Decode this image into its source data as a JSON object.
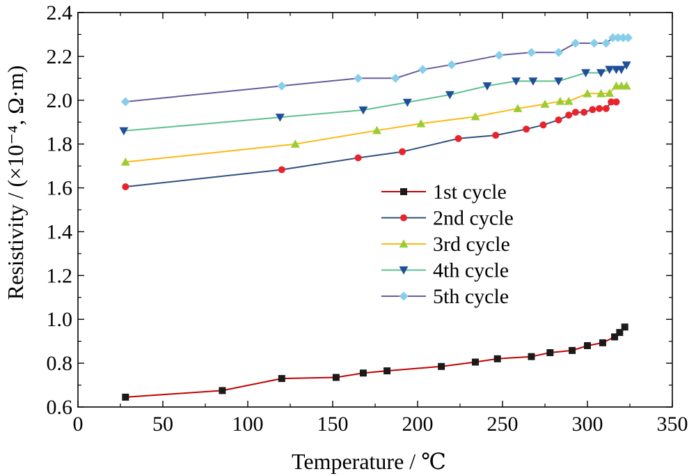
{
  "chart_data": {
    "type": "line",
    "xlabel": "Temperature / ℃",
    "ylabel": "Resistivity / (×10⁻⁴, Ω·m)",
    "xlim": [
      0,
      350
    ],
    "ylim": [
      0.6,
      2.4
    ],
    "xticks": [
      "0",
      "50",
      "100",
      "150",
      "200",
      "250",
      "300",
      "350"
    ],
    "yticks": [
      "0.6",
      "0.8",
      "1.0",
      "1.2",
      "1.4",
      "1.6",
      "1.8",
      "2.0",
      "2.2",
      "2.4"
    ],
    "grid": false,
    "legend_position": "center-right",
    "series": [
      {
        "name": "1st cycle",
        "line_color": "#C00000",
        "marker_color": "#1A1A1A",
        "marker": "square",
        "x": [
          28,
          85,
          120,
          152,
          168,
          182,
          214,
          234,
          247,
          267,
          278,
          291,
          300,
          309,
          316,
          319,
          322
        ],
        "y": [
          0.645,
          0.675,
          0.73,
          0.735,
          0.755,
          0.765,
          0.785,
          0.805,
          0.82,
          0.83,
          0.848,
          0.858,
          0.88,
          0.893,
          0.92,
          0.94,
          0.965
        ]
      },
      {
        "name": "2nd cycle",
        "line_color": "#2F4F7F",
        "marker_color": "#E8232A",
        "marker": "circle",
        "x": [
          28,
          120,
          165,
          191,
          224,
          246,
          264,
          274,
          283,
          289,
          293,
          298,
          303,
          307,
          311,
          314,
          317
        ],
        "y": [
          1.605,
          1.683,
          1.737,
          1.765,
          1.825,
          1.84,
          1.868,
          1.887,
          1.91,
          1.932,
          1.945,
          1.945,
          1.957,
          1.962,
          1.962,
          1.992,
          1.992
        ]
      },
      {
        "name": "3rd cycle",
        "line_color": "#FDB813",
        "marker_color": "#9ACD32",
        "marker": "triangle-up",
        "x": [
          28,
          128,
          176,
          202,
          234,
          259,
          275,
          284,
          289,
          300,
          308,
          313,
          317,
          320,
          323
        ],
        "y": [
          1.718,
          1.8,
          1.862,
          1.893,
          1.925,
          1.962,
          1.982,
          1.995,
          1.995,
          2.03,
          2.03,
          2.032,
          2.065,
          2.065,
          2.065
        ]
      },
      {
        "name": "4th cycle",
        "line_color": "#5FBF8F",
        "marker_color": "#1F4E9A",
        "marker": "triangle-down",
        "x": [
          27,
          119,
          168,
          194,
          219,
          241,
          258,
          268,
          283,
          299,
          308,
          313,
          317,
          320,
          323
        ],
        "y": [
          1.86,
          1.922,
          1.955,
          1.99,
          2.025,
          2.065,
          2.087,
          2.087,
          2.087,
          2.125,
          2.125,
          2.14,
          2.14,
          2.14,
          2.16
        ]
      },
      {
        "name": "5th cycle",
        "line_color": "#6A5A9A",
        "marker_color": "#87CEEB",
        "marker": "diamond",
        "x": [
          28,
          120,
          165,
          187,
          203,
          220,
          248,
          267,
          283,
          293,
          304,
          311,
          315,
          318,
          321,
          324
        ],
        "y": [
          1.993,
          2.065,
          2.1,
          2.1,
          2.14,
          2.162,
          2.205,
          2.218,
          2.218,
          2.26,
          2.26,
          2.26,
          2.285,
          2.285,
          2.285,
          2.285
        ]
      }
    ]
  }
}
